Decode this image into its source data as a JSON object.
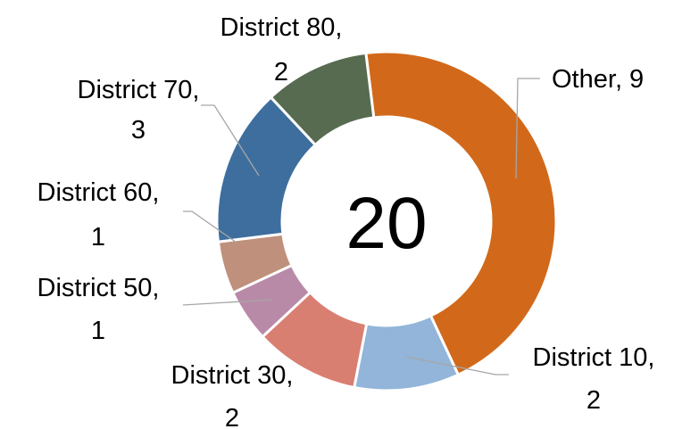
{
  "chart_data": {
    "type": "donut",
    "categories": [
      "Other",
      "District 10",
      "District 30",
      "District 50",
      "District 60",
      "District 70",
      "District 80"
    ],
    "values": [
      9,
      2,
      2,
      1,
      1,
      3,
      2
    ],
    "colors": [
      "#d2691a",
      "#92b5d9",
      "#d97f72",
      "#b98aa8",
      "#bf907c",
      "#3d6e9e",
      "#566b50"
    ],
    "label_separator": ",",
    "center_label": 20
  }
}
